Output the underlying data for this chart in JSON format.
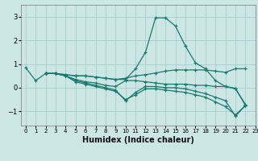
{
  "xlabel": "Humidex (Indice chaleur)",
  "xlim": [
    -0.5,
    23
  ],
  "ylim": [
    -1.6,
    3.5
  ],
  "yticks": [
    -1,
    0,
    1,
    2,
    3
  ],
  "xticks": [
    0,
    1,
    2,
    3,
    4,
    5,
    6,
    7,
    8,
    9,
    10,
    11,
    12,
    13,
    14,
    15,
    16,
    17,
    18,
    19,
    20,
    21,
    22,
    23
  ],
  "bg_color": "#cce5e5",
  "line_color": "#1a7a6e",
  "grid_color": "#aacccc",
  "lines": [
    {
      "x": [
        0,
        1,
        2,
        3,
        4,
        5,
        6,
        7,
        8,
        9,
        10,
        11,
        12,
        13,
        14,
        15,
        16,
        17,
        18,
        19,
        20,
        21,
        22
      ],
      "y": [
        0.85,
        0.3,
        0.6,
        0.6,
        0.55,
        0.5,
        0.5,
        0.45,
        0.4,
        0.35,
        0.35,
        0.8,
        1.5,
        2.95,
        2.95,
        2.6,
        1.75,
        1.05,
        0.8,
        0.3,
        0.05,
        -0.05,
        -0.7
      ]
    },
    {
      "x": [
        2,
        3,
        4,
        5,
        6,
        7,
        8,
        9,
        10,
        11,
        12,
        13,
        14,
        15,
        16,
        17,
        18,
        19,
        20,
        21,
        22
      ],
      "y": [
        0.6,
        0.6,
        0.55,
        0.5,
        0.5,
        0.45,
        0.4,
        0.35,
        0.4,
        0.5,
        0.55,
        0.62,
        0.7,
        0.75,
        0.75,
        0.75,
        0.75,
        0.7,
        0.65,
        0.8,
        0.8
      ]
    },
    {
      "x": [
        2,
        3,
        4,
        5,
        6,
        7,
        8,
        9,
        10,
        11,
        12,
        13,
        14,
        15,
        16,
        17,
        18,
        19,
        20,
        21,
        22
      ],
      "y": [
        0.6,
        0.6,
        0.5,
        0.35,
        0.25,
        0.2,
        0.1,
        0.05,
        0.3,
        0.3,
        0.25,
        0.2,
        0.15,
        0.15,
        0.15,
        0.1,
        0.1,
        0.05,
        0.05,
        -0.02,
        -0.75
      ]
    },
    {
      "x": [
        2,
        3,
        4,
        5,
        6,
        7,
        8,
        9,
        10,
        11,
        12,
        13,
        14,
        15,
        16,
        17,
        18,
        19,
        20,
        21,
        22
      ],
      "y": [
        0.6,
        0.6,
        0.5,
        0.3,
        0.2,
        0.1,
        0.0,
        -0.1,
        -0.55,
        -0.2,
        0.05,
        0.05,
        0.0,
        0.0,
        -0.05,
        -0.15,
        -0.25,
        -0.4,
        -0.55,
        -1.2,
        -0.75
      ]
    },
    {
      "x": [
        2,
        3,
        4,
        5,
        6,
        7,
        8,
        9,
        10,
        11,
        12,
        13,
        14,
        15,
        16,
        17,
        18,
        19,
        20,
        21,
        22
      ],
      "y": [
        0.6,
        0.6,
        0.5,
        0.25,
        0.15,
        0.05,
        -0.05,
        -0.15,
        -0.5,
        -0.3,
        -0.05,
        -0.05,
        -0.1,
        -0.15,
        -0.2,
        -0.3,
        -0.4,
        -0.6,
        -0.8,
        -1.15,
        -0.75
      ]
    }
  ]
}
